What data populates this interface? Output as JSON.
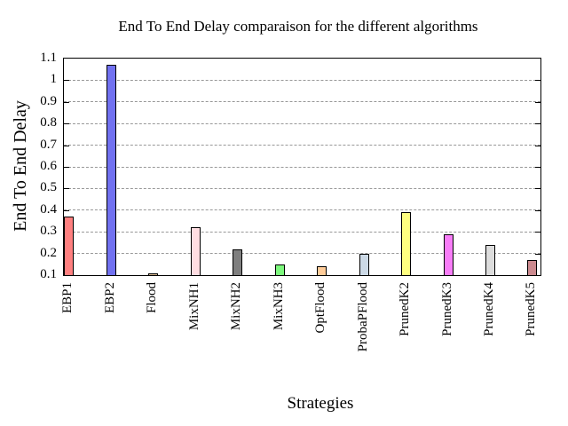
{
  "chart_data": {
    "type": "bar",
    "title": "End To End Delay comparaison for the different algorithms",
    "xlabel": "Strategies",
    "ylabel": "End To End Delay",
    "ylim": [
      0.1,
      1.1
    ],
    "yticks": [
      0.1,
      0.2,
      0.3,
      0.4,
      0.5,
      0.6,
      0.7,
      0.8,
      0.9,
      1.0,
      1.1
    ],
    "ytick_labels": [
      "0.1",
      "0.2",
      "0.3",
      "0.4",
      "0.5",
      "0.6",
      "0.7",
      "0.8",
      "0.9",
      "1",
      "1.1"
    ],
    "categories": [
      "EBP1",
      "EBP2",
      "Flood",
      "MixNH1",
      "MixNH2",
      "MixNH3",
      "OptFlood",
      "ProbaPFlood",
      "PrunedK2",
      "PrunedK3",
      "PrunedK4",
      "PrunedK5"
    ],
    "values": [
      0.37,
      1.07,
      0.11,
      0.32,
      0.22,
      0.15,
      0.14,
      0.2,
      0.39,
      0.29,
      0.24,
      0.17
    ],
    "bar_colors": [
      "#ff8080",
      "#7171f0",
      "#d2b48c",
      "#ffdde2",
      "#7f7f7f",
      "#7df87d",
      "#ffcc99",
      "#ccd9e6",
      "#ffff80",
      "#f87df8",
      "#dcdcdc",
      "#cc8a8f"
    ],
    "bar_border_color": "#000000",
    "grid": "horizontal-dashed",
    "grid_color": "#989898",
    "legend": "none",
    "background_color": "#ffffff"
  }
}
